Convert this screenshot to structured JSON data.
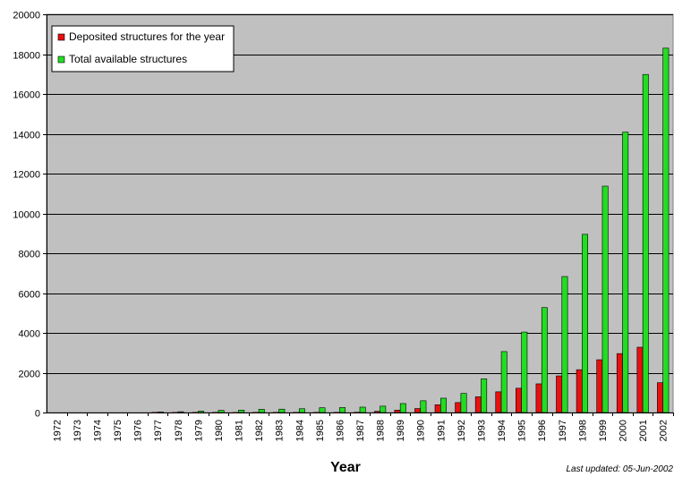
{
  "chart_data": {
    "type": "bar",
    "xlabel": "Year",
    "ylabel": "",
    "ylim": [
      0,
      20000
    ],
    "yticks": [
      0,
      2000,
      4000,
      6000,
      8000,
      10000,
      12000,
      14000,
      16000,
      18000,
      20000
    ],
    "categories": [
      "1972",
      "1973",
      "1974",
      "1975",
      "1976",
      "1977",
      "1978",
      "1979",
      "1980",
      "1981",
      "1982",
      "1983",
      "1984",
      "1985",
      "1986",
      "1987",
      "1988",
      "1989",
      "1990",
      "1991",
      "1992",
      "1993",
      "1994",
      "1995",
      "1996",
      "1997",
      "1998",
      "1999",
      "2000",
      "2001",
      "2002"
    ],
    "series": [
      {
        "name": "Deposited structures for the year",
        "color": "#e81010",
        "values": [
          0,
          0,
          0,
          0,
          0,
          10,
          5,
          10,
          10,
          5,
          10,
          10,
          10,
          10,
          10,
          15,
          60,
          120,
          200,
          390,
          500,
          790,
          1040,
          1220,
          1440,
          1840,
          2150,
          2650,
          2960,
          3280,
          1500
        ]
      },
      {
        "name": "Total available structures",
        "color": "#22dd22",
        "values": [
          0,
          0,
          0,
          0,
          0,
          30,
          40,
          70,
          110,
          120,
          160,
          170,
          190,
          240,
          250,
          270,
          320,
          450,
          590,
          720,
          960,
          1690,
          3060,
          4040,
          5270,
          6830,
          8950,
          11370,
          14080,
          16980,
          18300
        ]
      }
    ],
    "legend_position": "top-left",
    "grid": true,
    "plot_bg": "#c0c0c0"
  },
  "footnote": "Last updated: 05-Jun-2002"
}
